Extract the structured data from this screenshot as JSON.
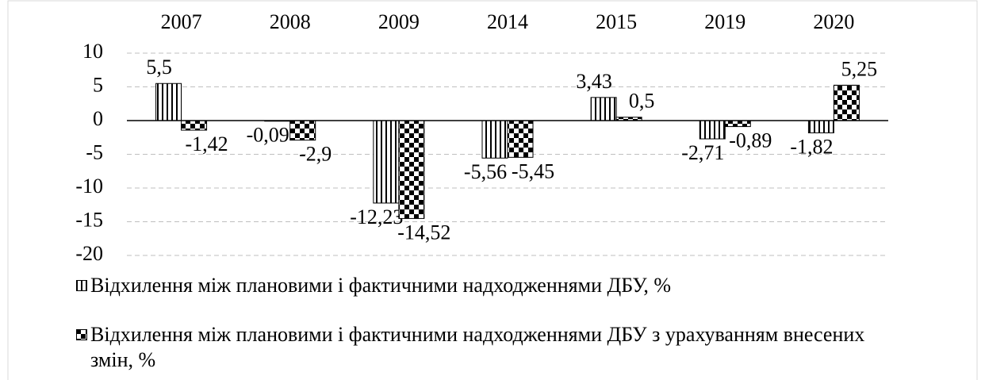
{
  "chart_data": {
    "type": "bar",
    "categories": [
      "2007",
      "2008",
      "2009",
      "2014",
      "2015",
      "2019",
      "2020"
    ],
    "series": [
      {
        "name": "Відхилення між плановими і фактичними надходженнями ДБУ, %",
        "color": "#000000",
        "pattern": "vertical-stripes",
        "values": [
          5.5,
          -0.09,
          -12.23,
          -5.56,
          3.43,
          -2.71,
          -1.82
        ],
        "value_labels": [
          "5,5",
          "-0,09",
          "-12,23",
          "-5,56",
          "3,43",
          "-2,71",
          "-1,82"
        ]
      },
      {
        "name": "Відхилення між плановими і фактичними надходженнями ДБУ з урахуванням внесених змін, %",
        "color": "#000000",
        "pattern": "checkerboard",
        "values": [
          -1.42,
          -2.9,
          -14.52,
          -5.45,
          0.5,
          -0.89,
          5.25
        ],
        "value_labels": [
          "-1,42",
          "-2,9",
          "-14,52",
          "-5,45",
          "0,5",
          "-0,89",
          "5,25"
        ]
      }
    ],
    "ylim": [
      -20,
      10
    ],
    "yticks": [
      -20,
      -15,
      -10,
      -5,
      0,
      5,
      10
    ],
    "grid": true
  }
}
